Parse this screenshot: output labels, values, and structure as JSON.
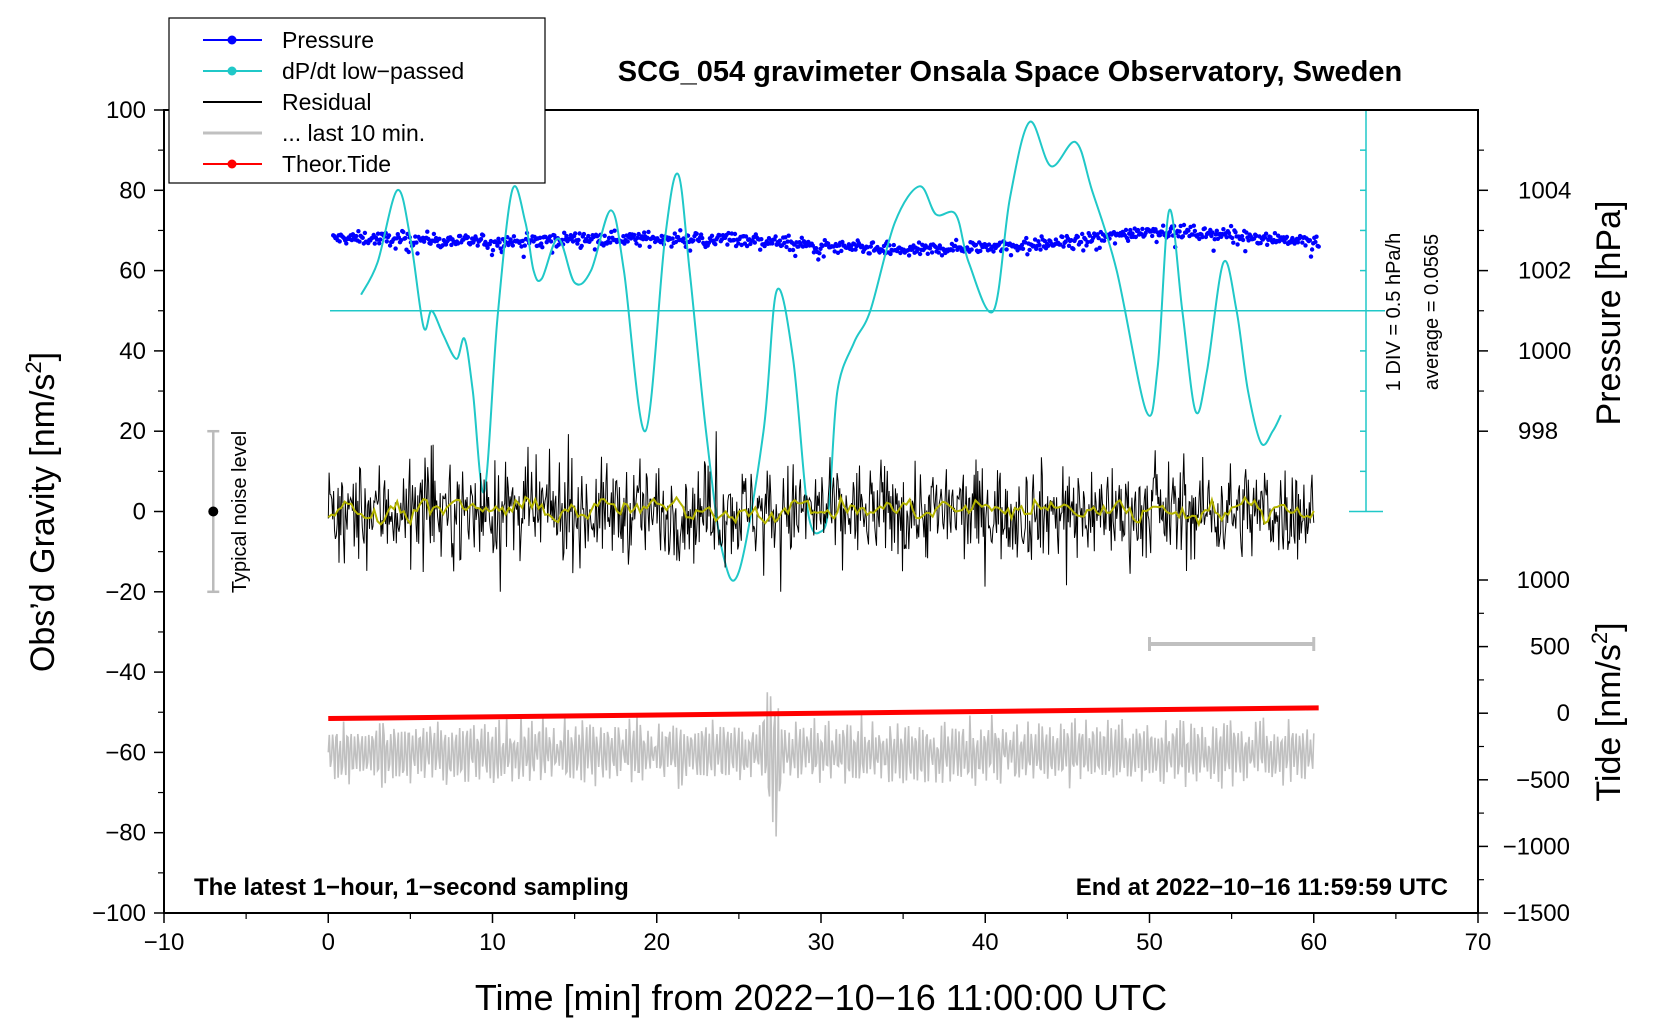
{
  "chart_data": {
    "type": "line",
    "title": "SCG_054 gravimeter Onsala Space Observatory, Sweden",
    "xlabel": "Time [min] from 2022−10−16 11:00:00 UTC",
    "ylabel_prefix": "Obs’d Gravity [nm/s",
    "ylabel_sup": "2",
    "ylabel_suffix": "]",
    "right_pressure_label": "Pressure [hPa]",
    "right_tide_prefix": "Tide [nm/s",
    "right_tide_sup": "2",
    "right_tide_suffix": "]",
    "xlim": [
      -10,
      70
    ],
    "ylim": [
      -100,
      100
    ],
    "x_ticks": [
      "−10",
      "0",
      "10",
      "20",
      "30",
      "40",
      "50",
      "60",
      "70"
    ],
    "x_tick_values": [
      -10,
      0,
      10,
      20,
      30,
      40,
      50,
      60,
      70
    ],
    "y_ticks": [
      "100",
      "80",
      "60",
      "40",
      "20",
      "0",
      "−20",
      "−40",
      "−60",
      "−80",
      "−100"
    ],
    "y_tick_values": [
      100,
      80,
      60,
      40,
      20,
      0,
      -20,
      -40,
      -60,
      -80,
      -100
    ],
    "pressure_axis": {
      "ticks": [
        "1004",
        "1002",
        "1000",
        "998"
      ],
      "tick_values": [
        1004,
        1002,
        1000,
        998
      ],
      "mapping": "gravity = 0.5*(hPa - 1001)*... (1001 hPa at 50, 2 hPa per 20 nm/s2)"
    },
    "tide_axis": {
      "ticks": [
        "1000",
        "500",
        "0",
        "−500",
        "−1000",
        "−1500"
      ],
      "tick_values": [
        1000,
        500,
        0,
        -500,
        -1000,
        -1500
      ],
      "range": [
        -1500,
        1000
      ]
    },
    "legend": {
      "placement": "top-left",
      "entries": [
        {
          "label": "Pressure",
          "color": "#0000ff",
          "marker": "dot"
        },
        {
          "label": "dP/dt low−passed",
          "color": "#20c8c8",
          "marker": "dot"
        },
        {
          "label": "Residual",
          "color": "#000000",
          "marker": "none"
        },
        {
          "label": "... last 10 min.",
          "color": "#c0c0c0",
          "marker": "none"
        },
        {
          "label": "Theor.Tide",
          "color": "#ff0000",
          "marker": "dot"
        }
      ]
    },
    "annotations": {
      "bottom_left": "The latest 1−hour, 1−second sampling",
      "bottom_right": "End at 2022−10−16 11:59:59 UTC",
      "div_label": "1 DIV = 0.5 hPa/h",
      "average_label": "average = 0.0565",
      "noise_label": "Typical noise level",
      "noise_bar": {
        "x": -7,
        "center": 0,
        "half_range": 20
      }
    },
    "series": [
      {
        "name": "Pressure",
        "color": "#0000ff",
        "axis": "pressure_hPa",
        "x": [
          0.3,
          5,
          10,
          15,
          20,
          25,
          30,
          35,
          40,
          45,
          50,
          55,
          60.3
        ],
        "values": [
          1002.8,
          1002.8,
          1002.7,
          1002.8,
          1002.8,
          1002.8,
          1002.6,
          1002.5,
          1002.6,
          1002.7,
          1003.0,
          1002.9,
          1002.7
        ]
      },
      {
        "name": "dP/dt low-passed",
        "color": "#20c8c8",
        "axis": "gravity_nm_s2",
        "x": [
          2,
          3,
          4.2,
          5,
          5.8,
          6.3,
          7,
          7.8,
          8.3,
          8.8,
          9.5,
          10.3,
          11.2,
          12,
          12.5,
          13,
          14,
          15,
          16,
          17.2,
          18,
          19.3,
          20.5,
          21.3,
          22,
          23,
          24,
          25,
          26.5,
          27.3,
          28.3,
          29.2,
          30,
          30.5,
          31,
          32,
          33,
          34.5,
          36,
          37,
          38.2,
          39,
          40.5,
          41.5,
          42.7,
          44,
          45.5,
          46.5,
          48,
          49.8,
          50.5,
          51.2,
          52,
          52.8,
          53.5,
          54.5,
          55.3,
          56,
          56.8,
          57.5,
          58
        ],
        "values": [
          54,
          62,
          80,
          68,
          46,
          50,
          44,
          38,
          43,
          30,
          5,
          48,
          80,
          72,
          60,
          58,
          68,
          57,
          60,
          75,
          60,
          20,
          68,
          84,
          60,
          20,
          -10,
          -15,
          20,
          55,
          38,
          0,
          -5,
          2,
          30,
          42,
          50,
          72,
          81,
          74,
          74,
          62,
          50,
          78,
          97,
          86,
          92,
          80,
          60,
          25,
          36,
          75,
          50,
          25,
          35,
          62,
          50,
          30,
          17,
          20,
          24
        ]
      },
      {
        "name": "Residual",
        "color": "#000000",
        "axis": "gravity_nm_s2",
        "x_range": [
          0,
          60
        ],
        "center": 0,
        "typical_amplitude": 8,
        "max_amplitude": 20
      },
      {
        "name": "Residual smoothed",
        "color": "#b4b400",
        "axis": "gravity_nm_s2",
        "x_range": [
          0,
          60
        ],
        "center": 0.5,
        "typical_amplitude": 1.5
      },
      {
        "name": "... last 10 min.",
        "color": "#c0c0c0",
        "axis": "gravity_nm_s2",
        "x_range": [
          0,
          60
        ],
        "center": -60,
        "typical_amplitude": 7,
        "extremes": [
          -82,
          -45
        ]
      },
      {
        "name": "Theor.Tide",
        "color": "#ff0000",
        "axis": "tide_nm_s2",
        "x": [
          0,
          60.3
        ],
        "values": [
          -40,
          40
        ]
      },
      {
        "name": "Last 10 min marker",
        "color": "#c0c0c0",
        "axis": "gravity_nm_s2",
        "x": [
          50,
          60
        ],
        "values": [
          -33,
          -33
        ]
      }
    ]
  }
}
